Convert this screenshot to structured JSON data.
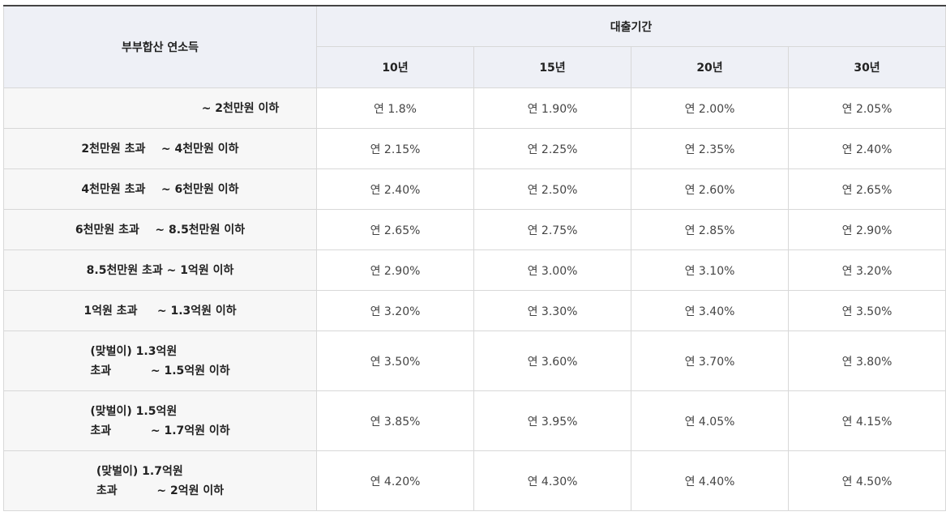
{
  "table": {
    "corner_header": "부부합산 연소득",
    "period_header": "대출기간",
    "periods": [
      "10년",
      "15년",
      "20년",
      "30년"
    ],
    "rows": [
      {
        "label_lines": [
          "~ 2천만원 이하"
        ],
        "rates": [
          "연 1.8%",
          "연 1.90%",
          "연 2.00%",
          "연 2.05%"
        ]
      },
      {
        "label_lines": [
          "2천만원 초과    ~ 4천만원 이하"
        ],
        "rates": [
          "연 2.15%",
          "연 2.25%",
          "연 2.35%",
          "연 2.40%"
        ]
      },
      {
        "label_lines": [
          "4천만원 초과    ~ 6천만원 이하"
        ],
        "rates": [
          "연 2.40%",
          "연 2.50%",
          "연 2.60%",
          "연 2.65%"
        ]
      },
      {
        "label_lines": [
          "6천만원 초과    ~ 8.5천만원 이하"
        ],
        "rates": [
          "연 2.65%",
          "연 2.75%",
          "연 2.85%",
          "연 2.90%"
        ]
      },
      {
        "label_lines": [
          "8.5천만원 초과 ~ 1억원 이하"
        ],
        "rates": [
          "연 2.90%",
          "연 3.00%",
          "연 3.10%",
          "연 3.20%"
        ]
      },
      {
        "label_lines": [
          "1억원 초과     ~ 1.3억원 이하"
        ],
        "rates": [
          "연 3.20%",
          "연 3.30%",
          "연 3.40%",
          "연 3.50%"
        ]
      },
      {
        "label_lines": [
          "(맞벌이) 1.3억원",
          "초과          ~ 1.5억원 이하"
        ],
        "rates": [
          "연 3.50%",
          "연 3.60%",
          "연 3.70%",
          "연 3.80%"
        ]
      },
      {
        "label_lines": [
          "(맞벌이) 1.5억원",
          "초과          ~ 1.7억원 이하"
        ],
        "rates": [
          "연 3.85%",
          "연 3.95%",
          "연 4.05%",
          "연 4.15%"
        ]
      },
      {
        "label_lines": [
          "(맞벌이) 1.7억원",
          "초과          ~ 2억원 이하"
        ],
        "rates": [
          "연 4.20%",
          "연 4.30%",
          "연 4.40%",
          "연 4.50%"
        ]
      }
    ]
  }
}
